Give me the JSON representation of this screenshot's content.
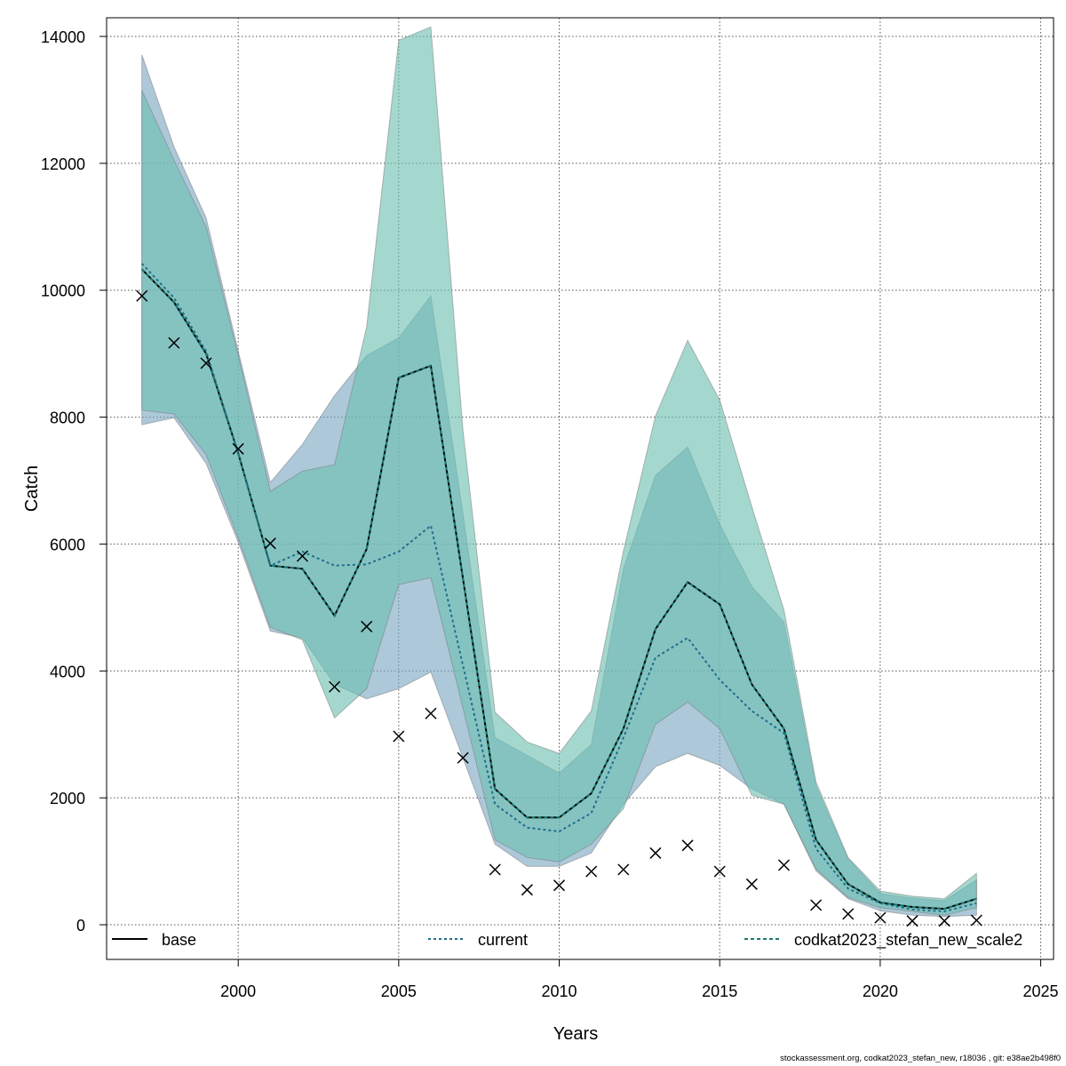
{
  "chart_data": {
    "type": "line",
    "title": "",
    "xlabel": "Years",
    "ylabel": "Catch",
    "xlim": [
      1995.9,
      2025.4
    ],
    "ylim": [
      -546,
      14294
    ],
    "xticks": [
      2000,
      2005,
      2010,
      2015,
      2020,
      2025
    ],
    "yticks": [
      0,
      2000,
      4000,
      6000,
      8000,
      10000,
      12000,
      14000
    ],
    "grid": true,
    "legend_placement": "bottom",
    "x": [
      1997,
      1998,
      1999,
      2000,
      2001,
      2002,
      2003,
      2004,
      2005,
      2006,
      2007,
      2008,
      2009,
      2010,
      2011,
      2012,
      2013,
      2014,
      2015,
      2016,
      2017,
      2018,
      2019,
      2020,
      2021,
      2022,
      2023
    ],
    "observed_catch": [
      9910,
      9170,
      8850,
      7500,
      6010,
      5810,
      3750,
      4700,
      2970,
      3330,
      2630,
      870,
      550,
      620,
      840,
      870,
      1130,
      1250,
      840,
      640,
      940,
      310,
      170,
      110,
      60,
      60,
      70
    ],
    "series": [
      {
        "name": "base",
        "style": "solid",
        "color": "#000000",
        "values": [
          10330,
          9810,
          9000,
          7430,
          5660,
          5610,
          4870,
          5920,
          8620,
          8810,
          5460,
          2140,
          1690,
          1690,
          2070,
          3090,
          4660,
          5400,
          5050,
          3790,
          3090,
          1340,
          640,
          350,
          280,
          250,
          410
        ]
      },
      {
        "name": "current",
        "style": "dotted",
        "color": "#1f6f8b",
        "band_color": "#7ba7c2",
        "values": [
          10420,
          9880,
          9040,
          7430,
          5660,
          5880,
          5660,
          5680,
          5880,
          6290,
          4090,
          1900,
          1530,
          1470,
          1760,
          2950,
          4210,
          4520,
          3860,
          3370,
          3020,
          1200,
          570,
          340,
          240,
          210,
          340
        ],
        "upper": [
          13710,
          12260,
          11140,
          9040,
          6970,
          7570,
          8340,
          8970,
          9250,
          9910,
          6480,
          2950,
          2670,
          2390,
          2840,
          5610,
          7080,
          7530,
          6310,
          5330,
          4770,
          2180,
          1040,
          490,
          420,
          380,
          710
        ],
        "lower": [
          7880,
          7990,
          7270,
          6030,
          4630,
          4520,
          3790,
          3560,
          3720,
          3980,
          2630,
          1270,
          920,
          920,
          1130,
          1900,
          2490,
          2700,
          2510,
          2140,
          1900,
          850,
          410,
          220,
          150,
          130,
          150
        ]
      },
      {
        "name": "codkat2023_stefan_new_scale2",
        "style": "dashed",
        "color": "#1b7a6e",
        "band_color": "#6cc0b2",
        "values": [
          10330,
          9810,
          9000,
          7430,
          5660,
          5610,
          4870,
          5920,
          8620,
          8810,
          5460,
          2140,
          1690,
          1690,
          2070,
          3090,
          4660,
          5400,
          5050,
          3790,
          3090,
          1340,
          640,
          350,
          280,
          250,
          410
        ],
        "upper": [
          13150,
          12050,
          11000,
          8970,
          6830,
          7150,
          7250,
          9420,
          13940,
          14150,
          7800,
          3350,
          2880,
          2700,
          3370,
          5890,
          8020,
          9210,
          8270,
          6590,
          4960,
          2250,
          1060,
          530,
          450,
          410,
          810
        ],
        "lower": [
          8110,
          8050,
          7410,
          6100,
          4690,
          4490,
          3260,
          3720,
          5360,
          5470,
          3420,
          1340,
          1060,
          990,
          1270,
          1830,
          3160,
          3510,
          3090,
          2040,
          1900,
          880,
          430,
          270,
          210,
          150,
          270
        ]
      }
    ]
  },
  "footer": "stockassessment.org, codkat2023_stefan_new, r18036 , git: e38ae2b498f0"
}
